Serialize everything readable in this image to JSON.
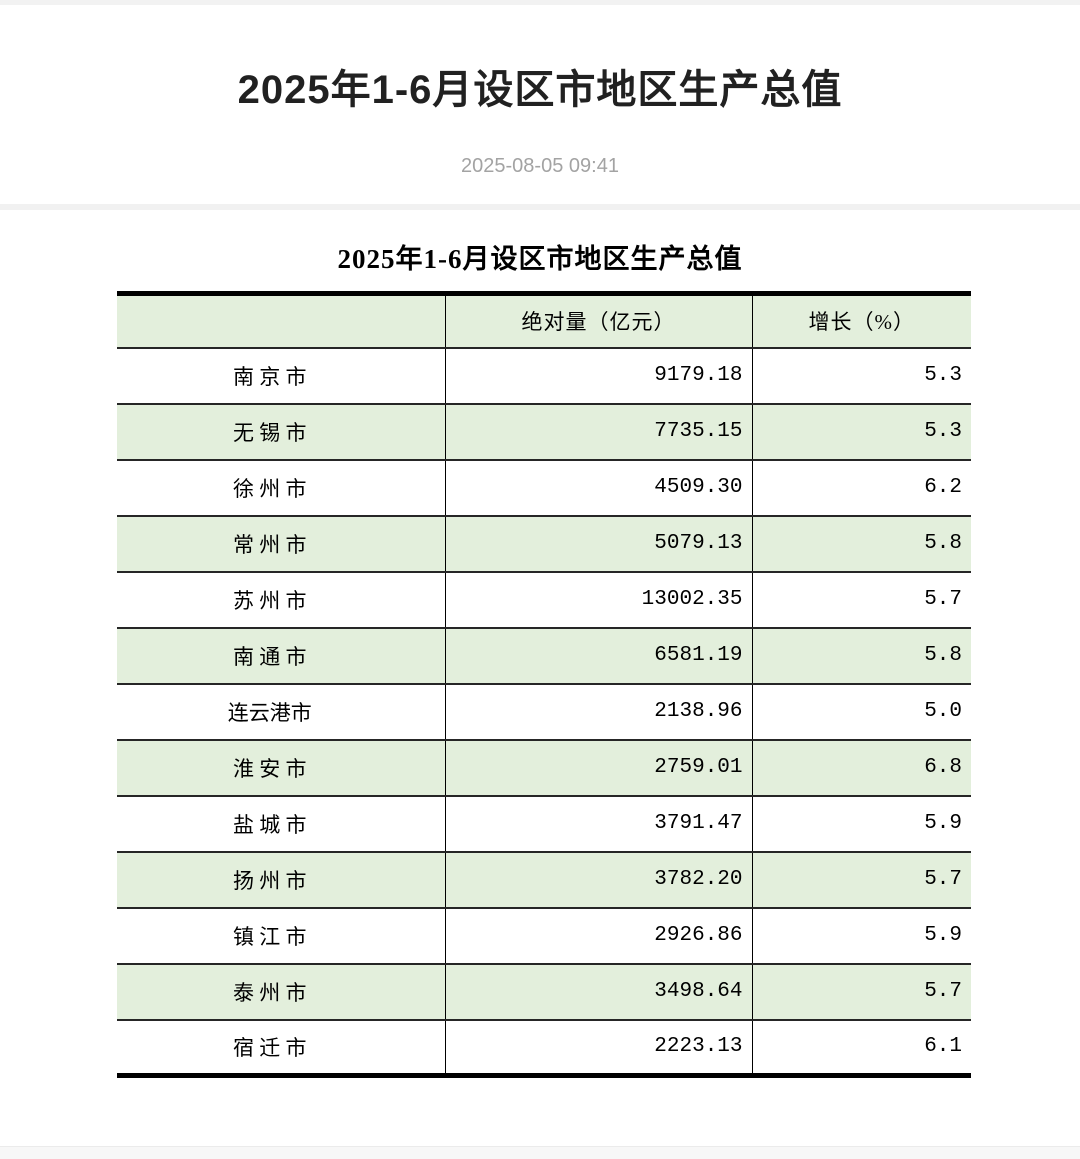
{
  "page": {
    "title": "2025年1-6月设区市地区生产总值",
    "publish_date": "2025-08-05 09:41"
  },
  "table": {
    "title": "2025年1-6月设区市地区生产总值",
    "columns": [
      "",
      "绝对量（亿元）",
      "增长（%）"
    ],
    "rows": [
      {
        "city": "南 京 市",
        "value": "9179.18",
        "growth": "5.3"
      },
      {
        "city": "无 锡 市",
        "value": "7735.15",
        "growth": "5.3"
      },
      {
        "city": "徐 州 市",
        "value": "4509.30",
        "growth": "6.2"
      },
      {
        "city": "常 州 市",
        "value": "5079.13",
        "growth": "5.8"
      },
      {
        "city": "苏 州 市",
        "value": "13002.35",
        "growth": "5.7"
      },
      {
        "city": "南 通 市",
        "value": "6581.19",
        "growth": "5.8"
      },
      {
        "city": "连云港市",
        "value": "2138.96",
        "growth": "5.0"
      },
      {
        "city": "淮 安 市",
        "value": "2759.01",
        "growth": "6.8"
      },
      {
        "city": "盐 城 市",
        "value": "3791.47",
        "growth": "5.9"
      },
      {
        "city": "扬 州 市",
        "value": "3782.20",
        "growth": "5.7"
      },
      {
        "city": "镇 江 市",
        "value": "2926.86",
        "growth": "5.9"
      },
      {
        "city": "泰 州 市",
        "value": "3498.64",
        "growth": "5.7"
      },
      {
        "city": "宿 迁 市",
        "value": "2223.13",
        "growth": "6.1"
      }
    ]
  },
  "colors": {
    "row_accent_green": "#e3efdc",
    "table_border": "#000000",
    "title_text": "#212121",
    "date_text": "#a3a3a3",
    "divider": "#f1f1f1"
  }
}
